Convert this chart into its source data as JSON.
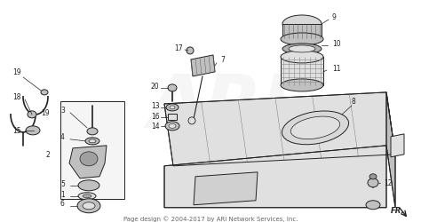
{
  "background_color": "#ffffff",
  "footer_text": "Page design © 2004-2017 by ARI Network Services, Inc.",
  "footer_fontsize": 5.0,
  "footer_color": "#666666",
  "watermark_text": "ARI",
  "watermark_alpha": 0.12,
  "watermark_fontsize": 60,
  "watermark_color": "#bbbbbb",
  "fr_label": "FR.",
  "fig_width": 4.74,
  "fig_height": 2.51,
  "dpi": 100,
  "line_color": "#222222",
  "fill_light": "#e0e0e0",
  "fill_mid": "#c0c0c0",
  "fill_dark": "#999999"
}
